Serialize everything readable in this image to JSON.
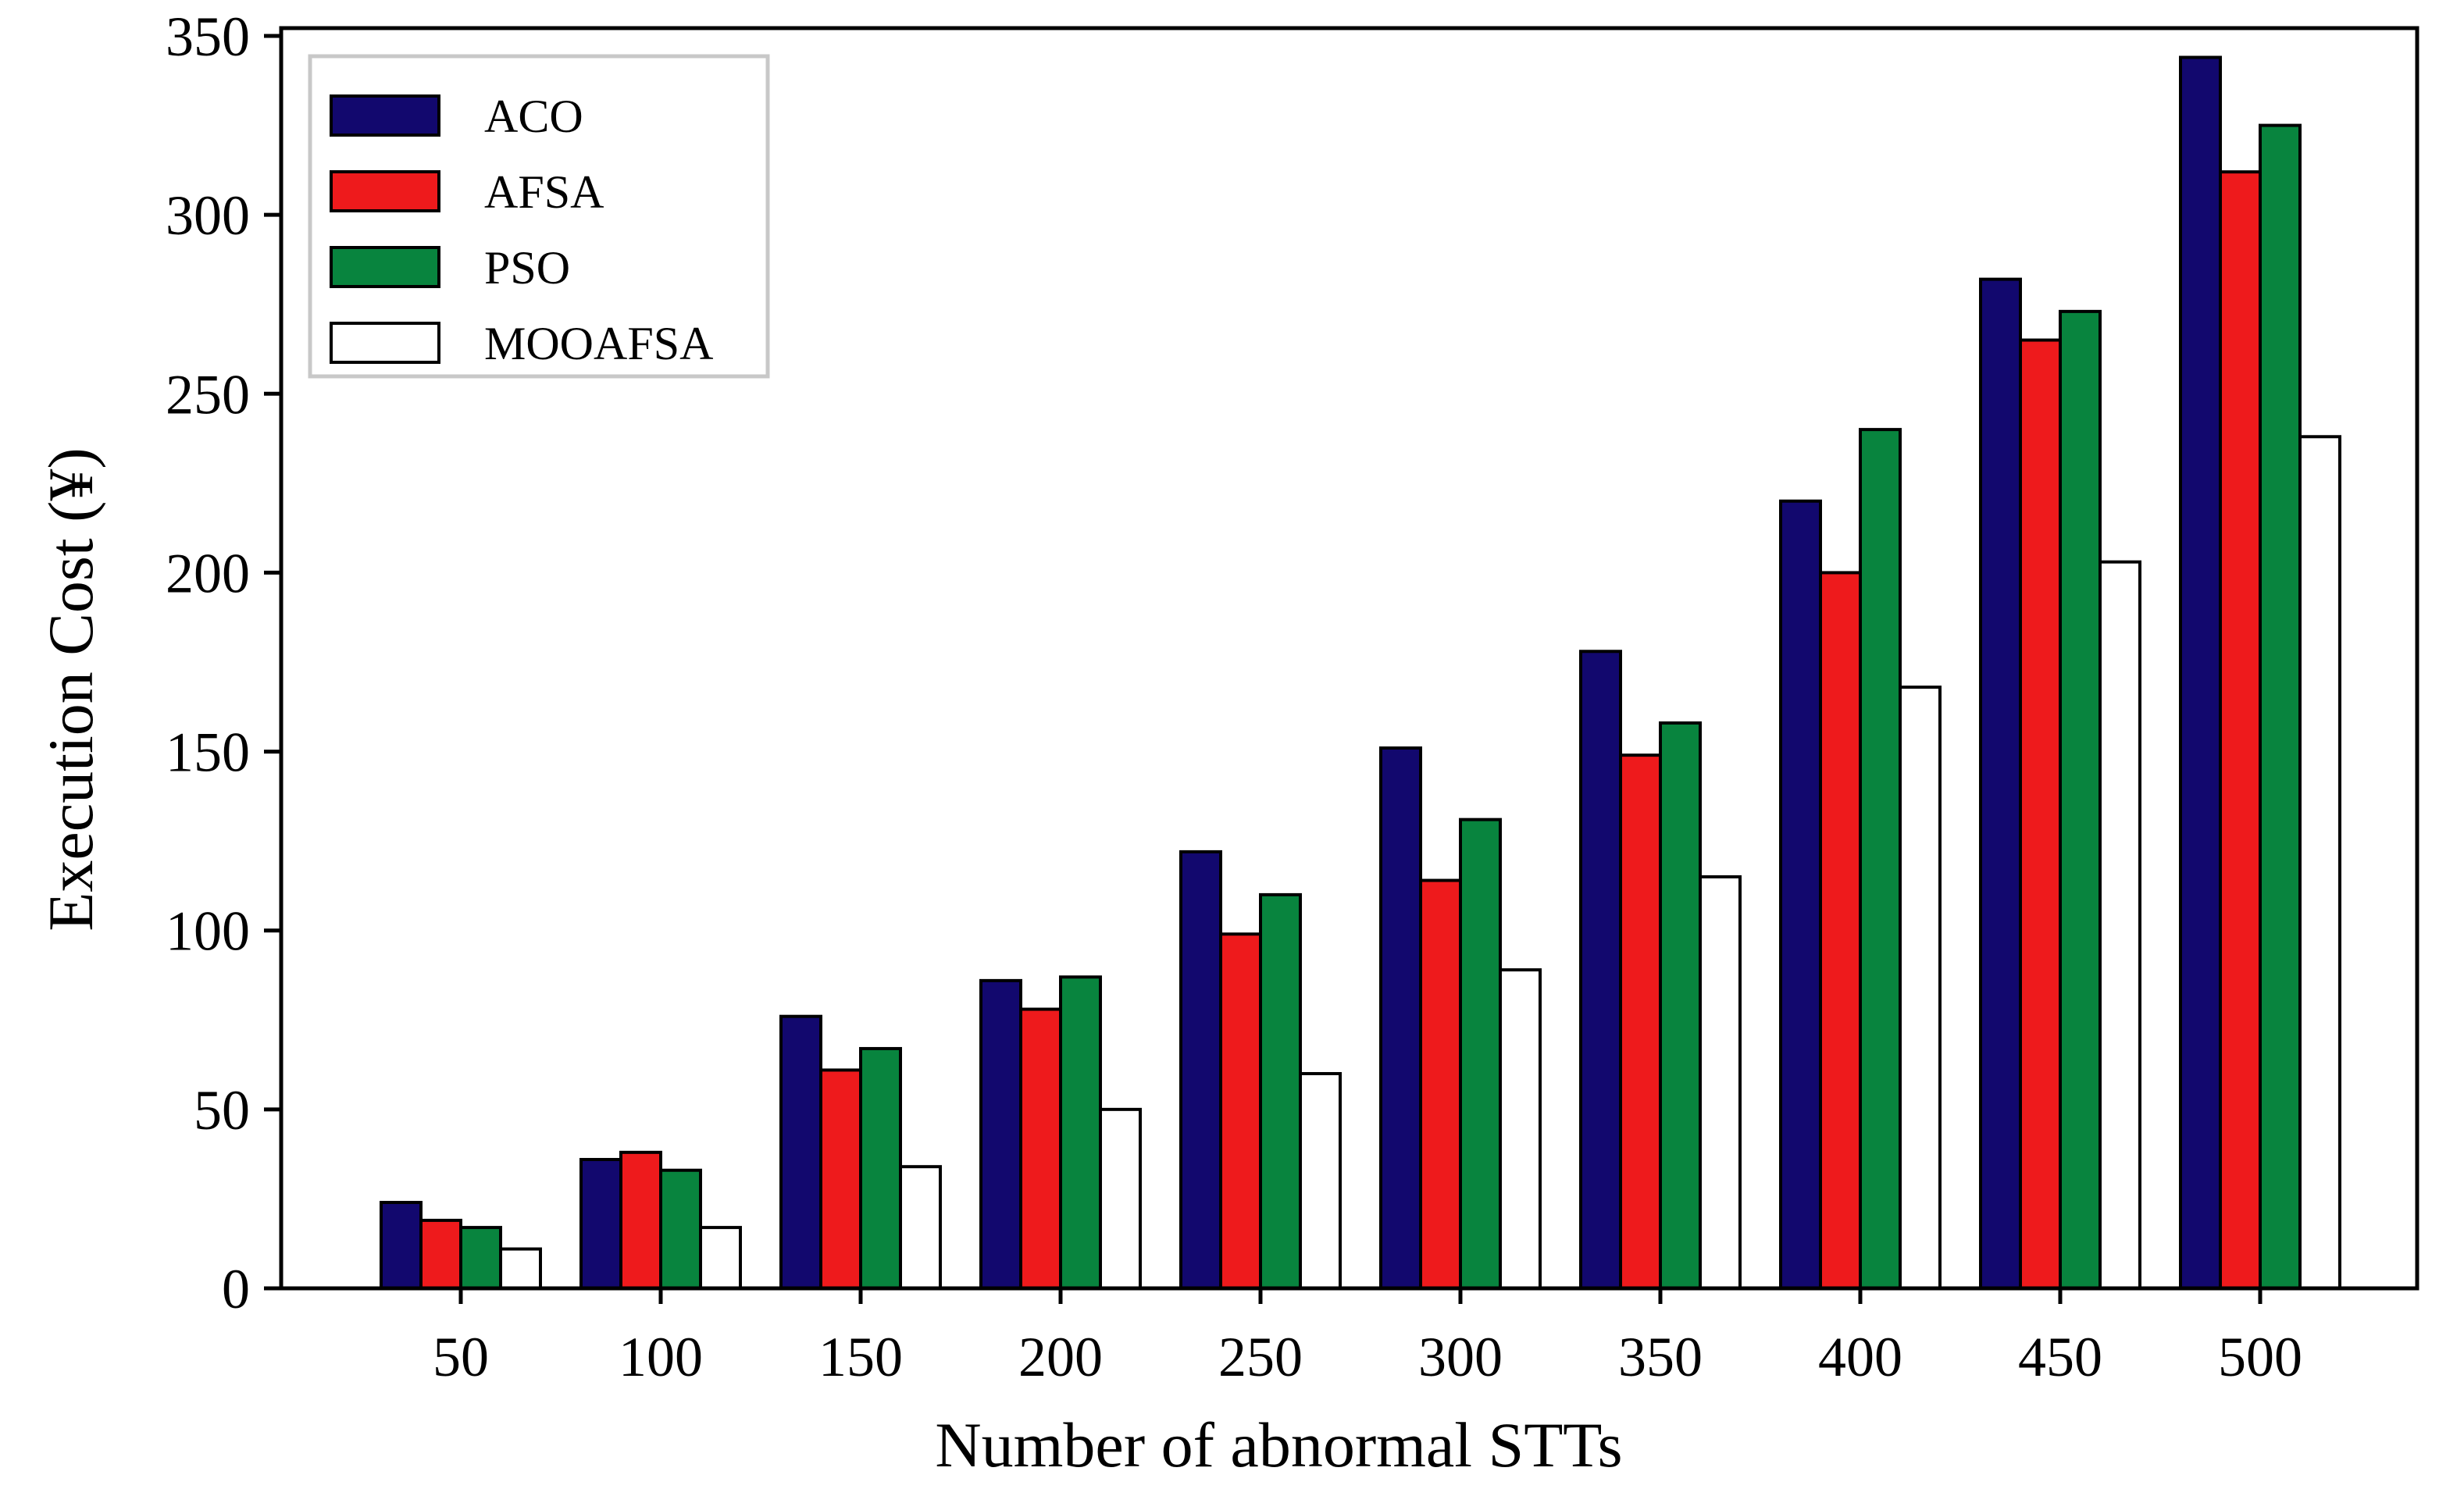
{
  "chart_data": {
    "type": "bar",
    "title": "",
    "xlabel": "Number of abnormal STTs",
    "ylabel": "Execution Cost (¥)",
    "categories": [
      "50",
      "100",
      "150",
      "200",
      "250",
      "300",
      "350",
      "400",
      "450",
      "500"
    ],
    "ylim": [
      0,
      350
    ],
    "yticks": [
      "0",
      "50",
      "100",
      "150",
      "200",
      "250",
      "300",
      "350"
    ],
    "grid": false,
    "legend_position": "top-left",
    "series": [
      {
        "name": "ACO",
        "color": "#12086e",
        "values": [
          24,
          36,
          76,
          86,
          122,
          151,
          178,
          220,
          282,
          344
        ]
      },
      {
        "name": "AFSA",
        "color": "#ee1a1c",
        "values": [
          19,
          38,
          61,
          78,
          99,
          114,
          149,
          200,
          265,
          312
        ]
      },
      {
        "name": "PSO",
        "color": "#08843e",
        "values": [
          17,
          33,
          67,
          87,
          110,
          131,
          158,
          240,
          273,
          325
        ]
      },
      {
        "name": "MOOAFSA",
        "color": "#ffffff",
        "values": [
          11,
          17,
          34,
          50,
          60,
          89,
          115,
          168,
          203,
          238
        ]
      }
    ]
  }
}
